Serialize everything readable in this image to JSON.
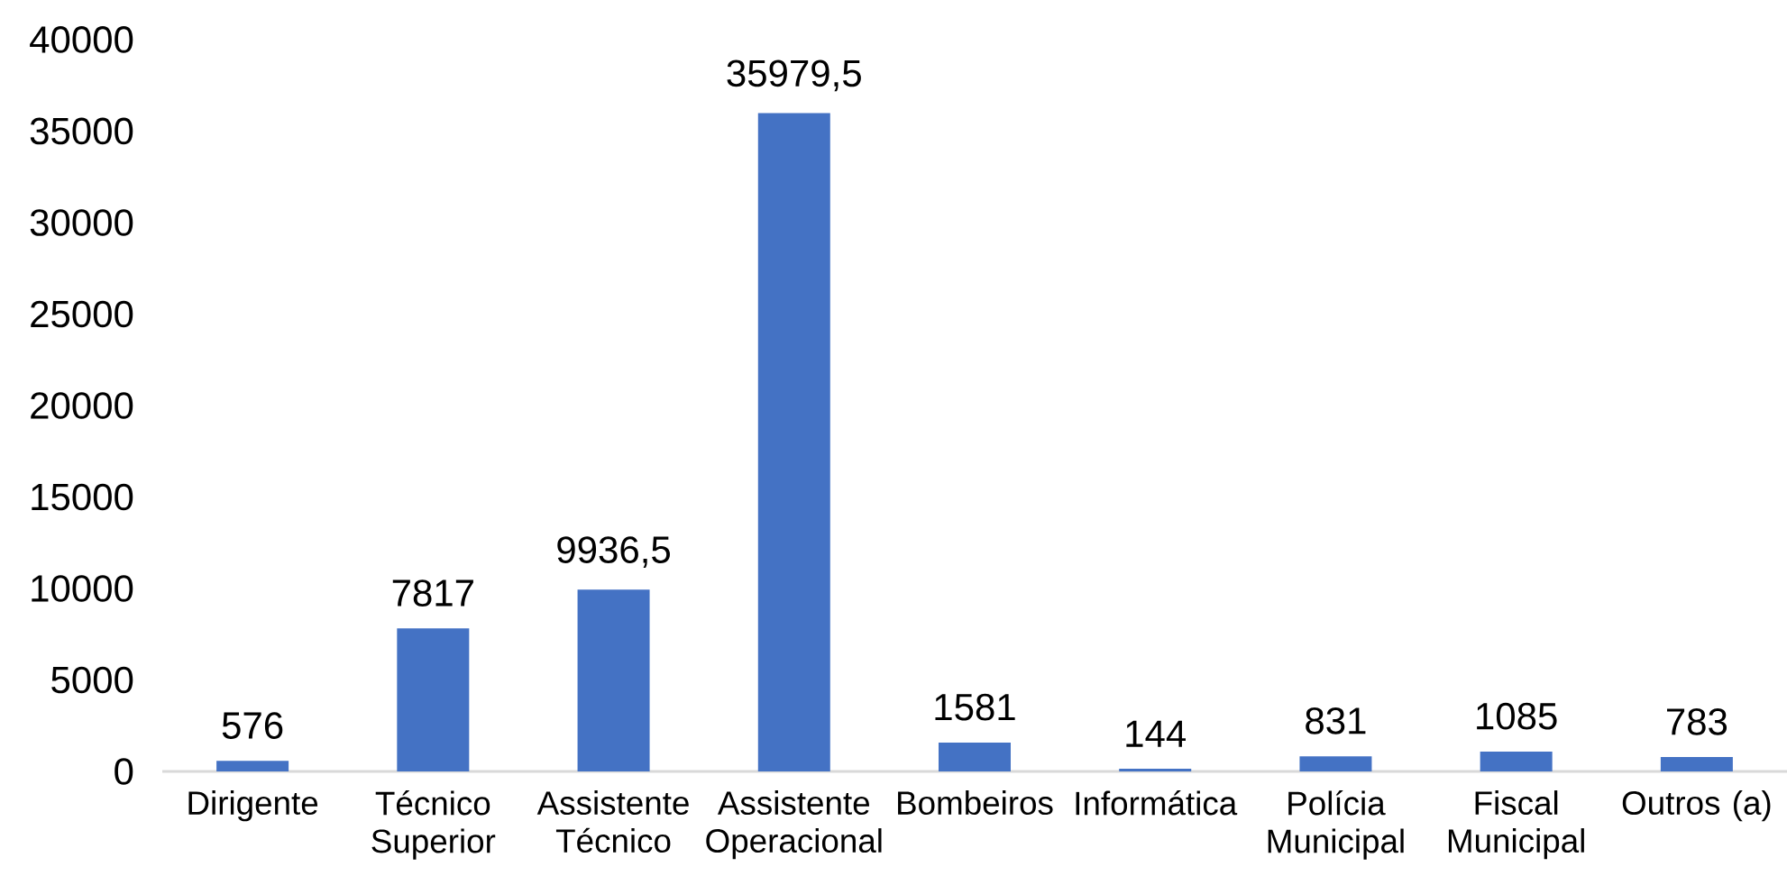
{
  "chart_data": {
    "type": "bar",
    "categories": [
      "Dirigente",
      "Técnico Superior",
      "Assistente Técnico",
      "Assistente Operacional",
      "Bombeiros",
      "Informática",
      "Polícia Municipal",
      "Fiscal Municipal",
      "Outros (a)"
    ],
    "values": [
      576,
      7817,
      9936.5,
      35979.5,
      1581,
      144,
      831,
      1085,
      783
    ],
    "value_labels": [
      "576",
      "7817",
      "9936,5",
      "35979,5",
      "1581",
      "144",
      "831",
      "1085",
      "783"
    ],
    "color": "#4472c4",
    "ylim": [
      0,
      40000
    ],
    "yticks": [
      0,
      5000,
      10000,
      15000,
      20000,
      25000,
      30000,
      35000,
      40000
    ]
  }
}
